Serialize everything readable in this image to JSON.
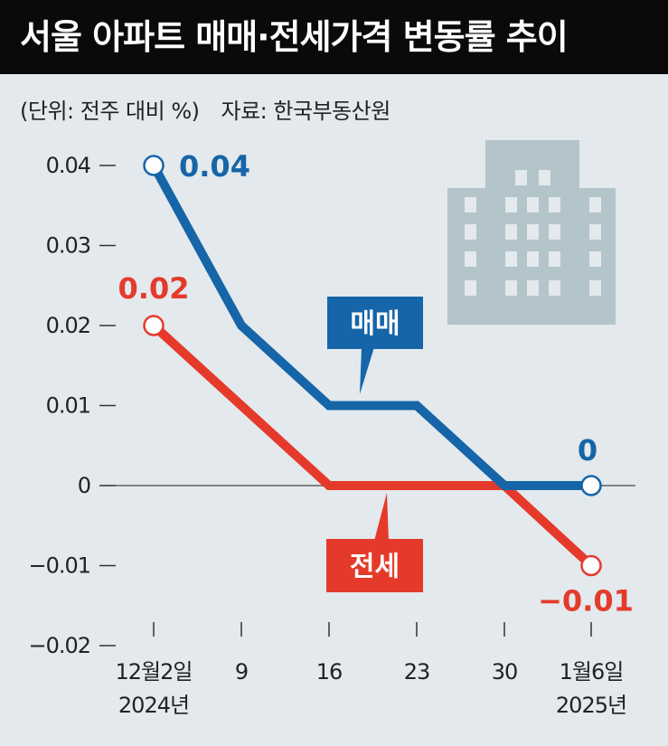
{
  "title": "서울 아파트 매매·전세가격 변동률 추이",
  "unit_note": "(단위: 전주 대비 %)",
  "source_note": "자료: 한국부동산원",
  "colors": {
    "sale": "#1565a8",
    "jeonse": "#e53a2b",
    "background": "#e3e9ec",
    "building": "#b3c4cb"
  },
  "icons": {
    "building": "building-icon"
  },
  "chart_data": {
    "type": "line",
    "categories": [
      "12월2일\n2024년",
      "9",
      "16",
      "23",
      "30",
      "1월6일\n2025년"
    ],
    "ylim": [
      -0.02,
      0.04
    ],
    "y_ticks": [
      0.04,
      0.03,
      0.02,
      0.01,
      0,
      -0.01,
      -0.02
    ],
    "y_tick_labels": [
      "0.04",
      "0.03",
      "0.02",
      "0.01",
      "0",
      "−0.01",
      "−0.02"
    ],
    "grid": false,
    "zero_line": true,
    "series": [
      {
        "name": "매매",
        "color": "#1565a8",
        "values": [
          0.04,
          0.02,
          0.01,
          0.01,
          0,
          0
        ],
        "start_label": "0.04",
        "end_label": "0"
      },
      {
        "name": "전세",
        "color": "#e53a2b",
        "values": [
          0.02,
          0.01,
          0,
          0,
          0,
          -0.01
        ],
        "start_label": "0.02",
        "end_label": "−0.01"
      }
    ]
  }
}
